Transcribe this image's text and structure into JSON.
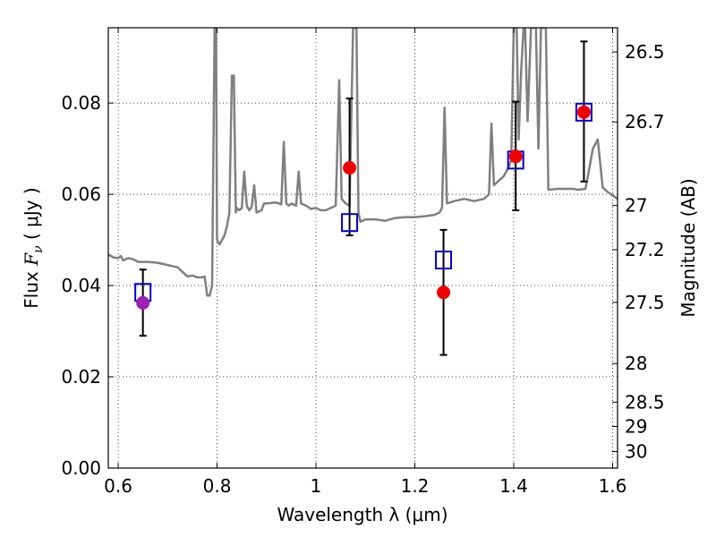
{
  "chart_data": {
    "type": "scatter",
    "xlabel": "Wavelength  λ (μm)",
    "ylabel": "Flux  F_ν  ( μJy )",
    "ylabel_parts": {
      "pre": "Flux  ",
      "symbol": "F",
      "subscript": "ν",
      "post": "  ( μJy )"
    },
    "y2label": "Magnitude (AB)",
    "xlim": [
      0.58,
      1.61
    ],
    "ylim": [
      0.0,
      0.0965
    ],
    "grid": true,
    "x_ticks": [
      {
        "value": 0.6,
        "label": "0.6"
      },
      {
        "value": 0.8,
        "label": "0.8"
      },
      {
        "value": 1.0,
        "label": "1"
      },
      {
        "value": 1.2,
        "label": "1.2"
      },
      {
        "value": 1.4,
        "label": "1.4"
      },
      {
        "value": 1.6,
        "label": "1.6"
      }
    ],
    "y_ticks": [
      {
        "value": 0.0,
        "label": "0.00"
      },
      {
        "value": 0.02,
        "label": "0.02"
      },
      {
        "value": 0.04,
        "label": "0.04"
      },
      {
        "value": 0.06,
        "label": "0.06"
      },
      {
        "value": 0.08,
        "label": "0.08"
      }
    ],
    "y2_ticks": [
      {
        "magnitude": 26.5,
        "label": "26.5"
      },
      {
        "magnitude": 26.7,
        "label": "26.7"
      },
      {
        "magnitude": 27.0,
        "label": "27"
      },
      {
        "magnitude": 27.2,
        "label": "27.2"
      },
      {
        "magnitude": 27.5,
        "label": "27.5"
      },
      {
        "magnitude": 28.0,
        "label": "28"
      },
      {
        "magnitude": 28.5,
        "label": "28.5"
      },
      {
        "magnitude": 29.0,
        "label": "29"
      },
      {
        "magnitude": 30.0,
        "label": "30"
      }
    ],
    "model_spectrum": {
      "color": "#808080",
      "points": [
        [
          0.58,
          0.0468
        ],
        [
          0.59,
          0.0462
        ],
        [
          0.6,
          0.046
        ],
        [
          0.605,
          0.0465
        ],
        [
          0.61,
          0.0455
        ],
        [
          0.62,
          0.046
        ],
        [
          0.63,
          0.0458
        ],
        [
          0.64,
          0.0452
        ],
        [
          0.66,
          0.0452
        ],
        [
          0.68,
          0.045
        ],
        [
          0.7,
          0.0445
        ],
        [
          0.72,
          0.044
        ],
        [
          0.73,
          0.043
        ],
        [
          0.74,
          0.042
        ],
        [
          0.75,
          0.0422
        ],
        [
          0.76,
          0.0418
        ],
        [
          0.77,
          0.0418
        ],
        [
          0.775,
          0.042
        ],
        [
          0.78,
          0.0378
        ],
        [
          0.785,
          0.0378
        ],
        [
          0.79,
          0.04
        ],
        [
          0.795,
          0.0965
        ],
        [
          0.798,
          0.0965
        ],
        [
          0.8,
          0.05
        ],
        [
          0.805,
          0.049
        ],
        [
          0.81,
          0.05
        ],
        [
          0.815,
          0.051
        ],
        [
          0.82,
          0.053
        ],
        [
          0.825,
          0.056
        ],
        [
          0.83,
          0.086
        ],
        [
          0.834,
          0.086
        ],
        [
          0.838,
          0.056
        ],
        [
          0.84,
          0.057
        ],
        [
          0.845,
          0.0565
        ],
        [
          0.85,
          0.057
        ],
        [
          0.855,
          0.065
        ],
        [
          0.86,
          0.0575
        ],
        [
          0.865,
          0.0565
        ],
        [
          0.87,
          0.0572
        ],
        [
          0.875,
          0.062
        ],
        [
          0.88,
          0.056
        ],
        [
          0.89,
          0.0565
        ],
        [
          0.895,
          0.058
        ],
        [
          0.9,
          0.058
        ],
        [
          0.92,
          0.0582
        ],
        [
          0.93,
          0.0578
        ],
        [
          0.935,
          0.0715
        ],
        [
          0.94,
          0.058
        ],
        [
          0.945,
          0.0575
        ],
        [
          0.95,
          0.058
        ],
        [
          0.96,
          0.0575
        ],
        [
          0.965,
          0.065
        ],
        [
          0.97,
          0.058
        ],
        [
          0.98,
          0.0575
        ],
        [
          0.99,
          0.0568
        ],
        [
          1.0,
          0.057
        ],
        [
          1.01,
          0.0565
        ],
        [
          1.02,
          0.0565
        ],
        [
          1.03,
          0.057
        ],
        [
          1.04,
          0.0575
        ],
        [
          1.047,
          0.085
        ],
        [
          1.052,
          0.059
        ],
        [
          1.06,
          0.058
        ],
        [
          1.068,
          0.0575
        ],
        [
          1.075,
          0.0965
        ],
        [
          1.082,
          0.0965
        ],
        [
          1.086,
          0.056
        ],
        [
          1.09,
          0.054
        ],
        [
          1.1,
          0.0545
        ],
        [
          1.12,
          0.0545
        ],
        [
          1.14,
          0.0542
        ],
        [
          1.16,
          0.0548
        ],
        [
          1.18,
          0.055
        ],
        [
          1.2,
          0.055
        ],
        [
          1.22,
          0.0552
        ],
        [
          1.24,
          0.0555
        ],
        [
          1.25,
          0.056
        ],
        [
          1.255,
          0.057
        ],
        [
          1.26,
          0.079
        ],
        [
          1.265,
          0.058
        ],
        [
          1.28,
          0.0585
        ],
        [
          1.3,
          0.059
        ],
        [
          1.32,
          0.0585
        ],
        [
          1.34,
          0.059
        ],
        [
          1.35,
          0.06
        ],
        [
          1.355,
          0.0755
        ],
        [
          1.36,
          0.062
        ],
        [
          1.37,
          0.063
        ],
        [
          1.38,
          0.064
        ],
        [
          1.385,
          0.065
        ],
        [
          1.39,
          0.066
        ],
        [
          1.395,
          0.0675
        ],
        [
          1.4,
          0.0965
        ],
        [
          1.406,
          0.0965
        ],
        [
          1.41,
          0.072
        ],
        [
          1.415,
          0.087
        ],
        [
          1.42,
          0.0965
        ],
        [
          1.423,
          0.0965
        ],
        [
          1.428,
          0.076
        ],
        [
          1.435,
          0.0965
        ],
        [
          1.445,
          0.0965
        ],
        [
          1.45,
          0.07
        ],
        [
          1.455,
          0.0965
        ],
        [
          1.465,
          0.0965
        ],
        [
          1.47,
          0.061
        ],
        [
          1.49,
          0.0612
        ],
        [
          1.52,
          0.0612
        ],
        [
          1.53,
          0.061
        ],
        [
          1.545,
          0.0612
        ],
        [
          1.55,
          0.064
        ],
        [
          1.56,
          0.07
        ],
        [
          1.57,
          0.072
        ],
        [
          1.58,
          0.0615
        ],
        [
          1.59,
          0.0605
        ],
        [
          1.61,
          0.059
        ]
      ]
    },
    "series": [
      {
        "marker": "open-square",
        "color": "#0000cc",
        "points": [
          {
            "x": 0.65,
            "y": 0.0385
          },
          {
            "x": 1.068,
            "y": 0.0538
          },
          {
            "x": 1.258,
            "y": 0.0456
          },
          {
            "x": 1.404,
            "y": 0.0675
          },
          {
            "x": 1.542,
            "y": 0.078
          }
        ]
      },
      {
        "marker": "filled-circle",
        "points": [
          {
            "x": 0.65,
            "y": 0.0362,
            "yerr": [
              0.029,
              0.0435
            ],
            "color": "#9b1fb3"
          },
          {
            "x": 1.068,
            "y": 0.0658,
            "yerr": [
              0.051,
              0.081
            ],
            "color": "#ee0000"
          },
          {
            "x": 1.258,
            "y": 0.0385,
            "yerr": [
              0.0248,
              0.0522
            ],
            "color": "#ee0000"
          },
          {
            "x": 1.404,
            "y": 0.0683,
            "yerr": [
              0.0565,
              0.0803
            ],
            "color": "#ee0000"
          },
          {
            "x": 1.542,
            "y": 0.078,
            "yerr": [
              0.0628,
              0.0935
            ],
            "color": "#ee0000"
          }
        ]
      }
    ]
  }
}
